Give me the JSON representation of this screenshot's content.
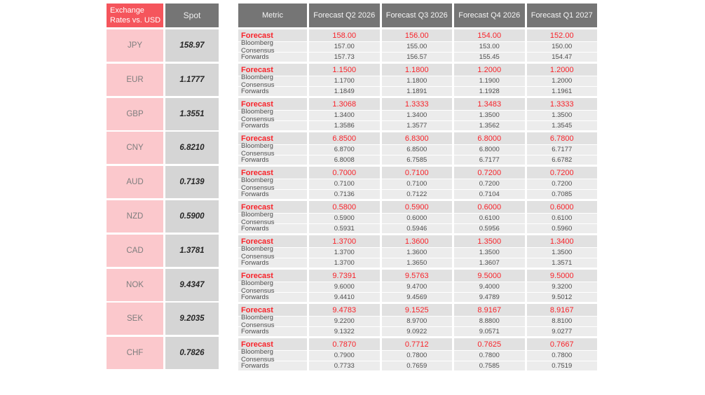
{
  "colors": {
    "header_red": "#F5555C",
    "currency_pink": "#FBC8CC",
    "header_gray": "#757575",
    "spot_cell_gray": "#D5D5D5",
    "forecast_row_gray": "#E1E1E1",
    "secondary_row_gray": "#ECECEC",
    "forecast_text_red": "#F8232A"
  },
  "chart_data": [
    {
      "type": "table",
      "title": "Exchange Rates vs. USD",
      "header": {
        "title_lines": [
          "Exchange",
          "Rates vs. USD"
        ],
        "spot_label": "Spot"
      },
      "rows": [
        {
          "currency": "JPY",
          "spot": "158.97"
        },
        {
          "currency": "EUR",
          "spot": "1.1777"
        },
        {
          "currency": "GBP",
          "spot": "1.3551"
        },
        {
          "currency": "CNY",
          "spot": "6.8210"
        },
        {
          "currency": "AUD",
          "spot": "0.7139"
        },
        {
          "currency": "NZD",
          "spot": "0.5900"
        },
        {
          "currency": "CAD",
          "spot": "1.3781"
        },
        {
          "currency": "NOK",
          "spot": "9.4347"
        },
        {
          "currency": "SEK",
          "spot": "9.2035"
        },
        {
          "currency": "CHF",
          "spot": "0.7826"
        }
      ]
    },
    {
      "type": "table",
      "title": "FX Forecasts by Quarter",
      "columns": [
        "Metric",
        "Forecast Q2 2026",
        "Forecast Q3 2026",
        "Forecast Q4 2026",
        "Forecast Q1 2027"
      ],
      "blocks": [
        {
          "currency": "JPY",
          "series": [
            {
              "name": "Forecast",
              "values": [
                "158.00",
                "156.00",
                "154.00",
                "152.00"
              ]
            },
            {
              "name": "Bloomberg Consensus",
              "values": [
                "157.00",
                "155.00",
                "153.00",
                "150.00"
              ]
            },
            {
              "name": "Forwards",
              "values": [
                "157.73",
                "156.57",
                "155.45",
                "154.47"
              ]
            }
          ]
        },
        {
          "currency": "EUR",
          "series": [
            {
              "name": "Forecast",
              "values": [
                "1.1500",
                "1.1800",
                "1.2000",
                "1.2000"
              ]
            },
            {
              "name": "Bloomberg Consensus",
              "values": [
                "1.1700",
                "1.1800",
                "1.1900",
                "1.2000"
              ]
            },
            {
              "name": "Forwards",
              "values": [
                "1.1849",
                "1.1891",
                "1.1928",
                "1.1961"
              ]
            }
          ]
        },
        {
          "currency": "GBP",
          "series": [
            {
              "name": "Forecast",
              "values": [
                "1.3068",
                "1.3333",
                "1.3483",
                "1.3333"
              ]
            },
            {
              "name": "Bloomberg Consensus",
              "values": [
                "1.3400",
                "1.3400",
                "1.3500",
                "1.3500"
              ]
            },
            {
              "name": "Forwards",
              "values": [
                "1.3586",
                "1.3577",
                "1.3562",
                "1.3545"
              ]
            }
          ]
        },
        {
          "currency": "CNY",
          "series": [
            {
              "name": "Forecast",
              "values": [
                "6.8500",
                "6.8300",
                "6.8000",
                "6.7800"
              ]
            },
            {
              "name": "Bloomberg Consensus",
              "values": [
                "6.8700",
                "6.8500",
                "6.8000",
                "6.7177"
              ]
            },
            {
              "name": "Forwards",
              "values": [
                "6.8008",
                "6.7585",
                "6.7177",
                "6.6782"
              ]
            }
          ]
        },
        {
          "currency": "AUD",
          "series": [
            {
              "name": "Forecast",
              "values": [
                "0.7000",
                "0.7100",
                "0.7200",
                "0.7200"
              ]
            },
            {
              "name": "Bloomberg Consensus",
              "values": [
                "0.7100",
                "0.7100",
                "0.7200",
                "0.7200"
              ]
            },
            {
              "name": "Forwards",
              "values": [
                "0.7136",
                "0.7122",
                "0.7104",
                "0.7085"
              ]
            }
          ]
        },
        {
          "currency": "NZD",
          "series": [
            {
              "name": "Forecast",
              "values": [
                "0.5800",
                "0.5900",
                "0.6000",
                "0.6000"
              ]
            },
            {
              "name": "Bloomberg Consensus",
              "values": [
                "0.5900",
                "0.6000",
                "0.6100",
                "0.6100"
              ]
            },
            {
              "name": "Forwards",
              "values": [
                "0.5931",
                "0.5946",
                "0.5956",
                "0.5960"
              ]
            }
          ]
        },
        {
          "currency": "CAD",
          "series": [
            {
              "name": "Forecast",
              "values": [
                "1.3700",
                "1.3600",
                "1.3500",
                "1.3400"
              ]
            },
            {
              "name": "Bloomberg Consensus",
              "values": [
                "1.3700",
                "1.3600",
                "1.3500",
                "1.3500"
              ]
            },
            {
              "name": "Forwards",
              "values": [
                "1.3700",
                "1.3650",
                "1.3607",
                "1.3571"
              ]
            }
          ]
        },
        {
          "currency": "NOK",
          "series": [
            {
              "name": "Forecast",
              "values": [
                "9.7391",
                "9.5763",
                "9.5000",
                "9.5000"
              ]
            },
            {
              "name": "Bloomberg Consensus",
              "values": [
                "9.6000",
                "9.4700",
                "9.4000",
                "9.3200"
              ]
            },
            {
              "name": "Forwards",
              "values": [
                "9.4410",
                "9.4569",
                "9.4789",
                "9.5012"
              ]
            }
          ]
        },
        {
          "currency": "SEK",
          "series": [
            {
              "name": "Forecast",
              "values": [
                "9.4783",
                "9.1525",
                "8.9167",
                "8.9167"
              ]
            },
            {
              "name": "Bloomberg Consensus",
              "values": [
                "9.2200",
                "8.9700",
                "8.8800",
                "8.8100"
              ]
            },
            {
              "name": "Forwards",
              "values": [
                "9.1322",
                "9.0922",
                "9.0571",
                "9.0277"
              ]
            }
          ]
        },
        {
          "currency": "CHF",
          "series": [
            {
              "name": "Forecast",
              "values": [
                "0.7870",
                "0.7712",
                "0.7625",
                "0.7667"
              ]
            },
            {
              "name": "Bloomberg Consensus",
              "values": [
                "0.7900",
                "0.7800",
                "0.7800",
                "0.7800"
              ]
            },
            {
              "name": "Forwards",
              "values": [
                "0.7733",
                "0.7659",
                "0.7585",
                "0.7519"
              ]
            }
          ]
        }
      ]
    }
  ]
}
